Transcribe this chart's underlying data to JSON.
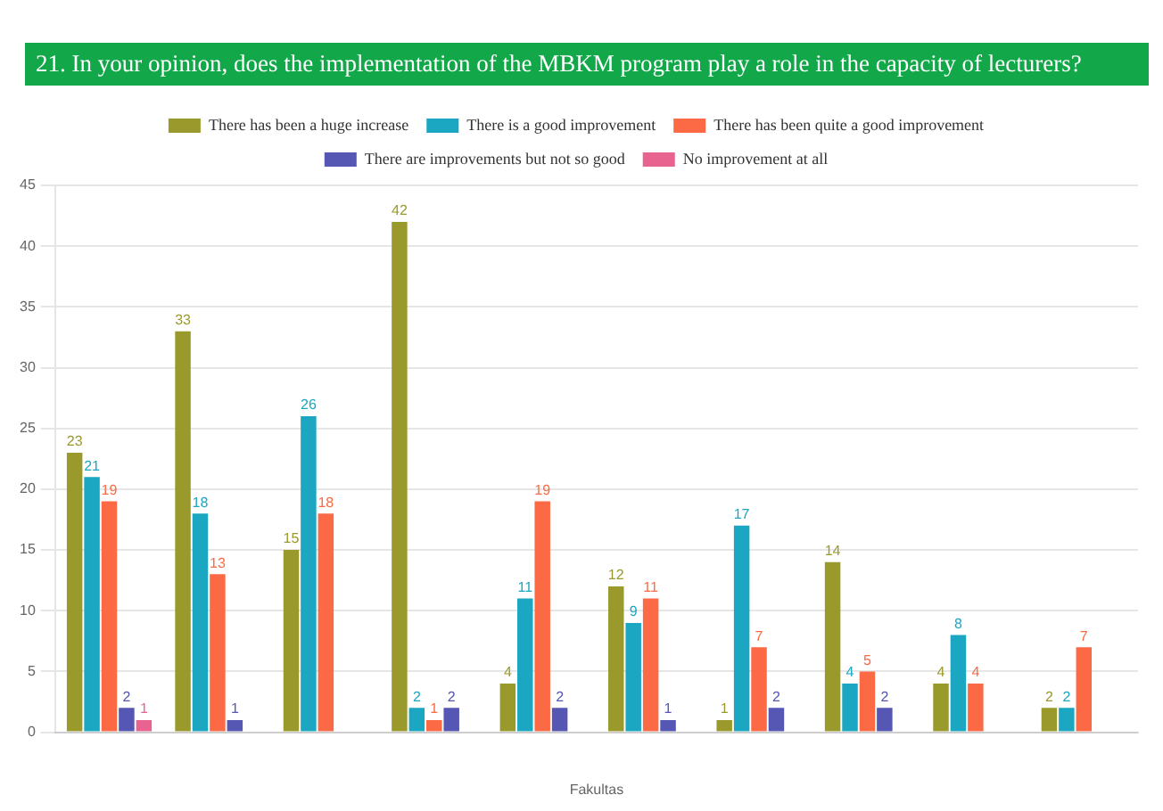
{
  "chart_data": {
    "type": "bar",
    "title": "21. In your opinion, does the implementation of the MBKM program play a role in the capacity of lecturers?",
    "xlabel": "Fakultas",
    "categories": [
      null,
      null,
      null,
      null,
      null,
      null,
      null,
      null,
      null,
      null
    ],
    "series": [
      {
        "name": "There has been a huge increase",
        "color": "#9a9a2c",
        "values": [
          23,
          33,
          15,
          42,
          4,
          12,
          1,
          14,
          4,
          2
        ]
      },
      {
        "name": "There is a good improvement",
        "color": "#1ba7c1",
        "values": [
          21,
          18,
          26,
          2,
          11,
          9,
          17,
          4,
          8,
          2
        ]
      },
      {
        "name": "There has been quite a good improvement",
        "color": "#fb6a45",
        "values": [
          19,
          13,
          18,
          1,
          19,
          11,
          7,
          5,
          4,
          7
        ]
      },
      {
        "name": "There are improvements but not so good",
        "color": "#5656b4",
        "values": [
          2,
          1,
          null,
          2,
          2,
          1,
          2,
          2,
          null,
          null
        ]
      },
      {
        "name": "No improvement at all",
        "color": "#e8638f",
        "values": [
          1,
          null,
          null,
          null,
          null,
          null,
          null,
          null,
          null,
          null
        ]
      }
    ],
    "ylim": [
      0,
      45
    ],
    "yticks": [
      0,
      5,
      10,
      15,
      20,
      25,
      30,
      35,
      40,
      45
    ],
    "grid": "y",
    "legend": "top",
    "data_labels": true
  }
}
